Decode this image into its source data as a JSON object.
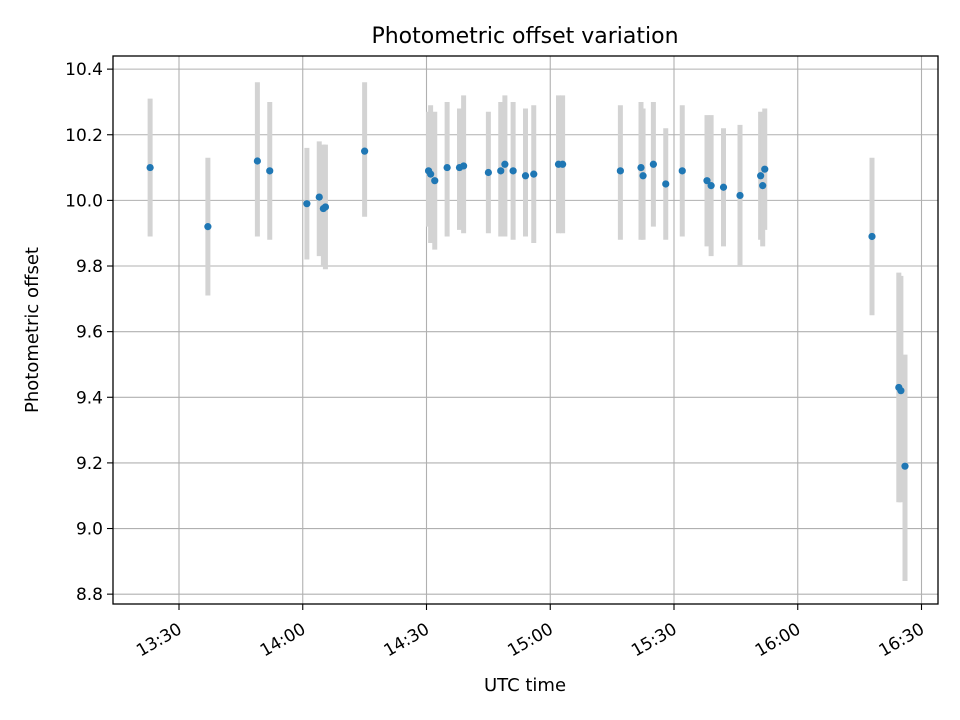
{
  "chart_data": {
    "type": "scatter",
    "title": "Photometric offset variation",
    "xlabel": "UTC time",
    "ylabel": "Photometric offset",
    "x_ticks": [
      "13:30",
      "14:00",
      "14:30",
      "15:00",
      "15:30",
      "16:00",
      "16:30"
    ],
    "y_ticks": [
      "8.8",
      "9.0",
      "9.2",
      "9.4",
      "9.6",
      "9.8",
      "10.0",
      "10.2",
      "10.4"
    ],
    "xlim": [
      "13:14",
      "16:34"
    ],
    "ylim": [
      8.77,
      10.44
    ],
    "grid": true,
    "point_color": "#1f77b4",
    "errorbar_color": "#d3d3d3",
    "series": [
      {
        "x": [
          "13:23",
          "13:37",
          "13:49",
          "13:52",
          "14:01",
          "14:04",
          "14:05",
          "14:05.5",
          "14:15",
          "14:30.5",
          "14:31",
          "14:32",
          "14:35",
          "14:38",
          "14:39",
          "14:45",
          "14:48",
          "14:49",
          "14:51",
          "14:54",
          "14:56",
          "15:02",
          "15:03",
          "15:17",
          "15:22",
          "15:22.5",
          "15:25",
          "15:28",
          "15:32",
          "15:38",
          "15:39",
          "15:42",
          "15:46",
          "15:51",
          "15:51.5",
          "15:52",
          "16:18",
          "16:24.5",
          "16:25",
          "16:26"
        ],
        "y": [
          10.1,
          9.92,
          10.12,
          10.09,
          9.99,
          10.01,
          9.975,
          9.98,
          10.15,
          10.09,
          10.08,
          10.06,
          10.1,
          10.1,
          10.105,
          10.085,
          10.09,
          10.11,
          10.09,
          10.075,
          10.08,
          10.11,
          10.11,
          10.09,
          10.1,
          10.075,
          10.11,
          10.05,
          10.09,
          10.06,
          10.045,
          10.04,
          10.015,
          10.075,
          10.045,
          10.095,
          9.89,
          9.43,
          9.42,
          9.19
        ],
        "err_low": [
          9.89,
          9.71,
          9.89,
          9.88,
          9.82,
          9.83,
          9.8,
          9.79,
          9.95,
          9.92,
          9.87,
          9.85,
          9.89,
          9.91,
          9.9,
          9.9,
          9.89,
          9.89,
          9.88,
          9.89,
          9.87,
          9.9,
          9.9,
          9.88,
          9.88,
          9.88,
          9.92,
          9.88,
          9.89,
          9.86,
          9.83,
          9.86,
          9.8,
          9.88,
          9.86,
          9.91,
          9.65,
          9.08,
          9.08,
          8.84
        ],
        "err_high": [
          10.31,
          10.13,
          10.36,
          10.3,
          10.16,
          10.18,
          10.17,
          10.17,
          10.36,
          10.27,
          10.29,
          10.27,
          10.3,
          10.28,
          10.32,
          10.27,
          10.3,
          10.32,
          10.3,
          10.28,
          10.29,
          10.32,
          10.32,
          10.29,
          10.3,
          10.28,
          10.3,
          10.22,
          10.29,
          10.26,
          10.26,
          10.22,
          10.23,
          10.27,
          10.23,
          10.28,
          10.13,
          9.78,
          9.77,
          9.53
        ]
      }
    ]
  }
}
